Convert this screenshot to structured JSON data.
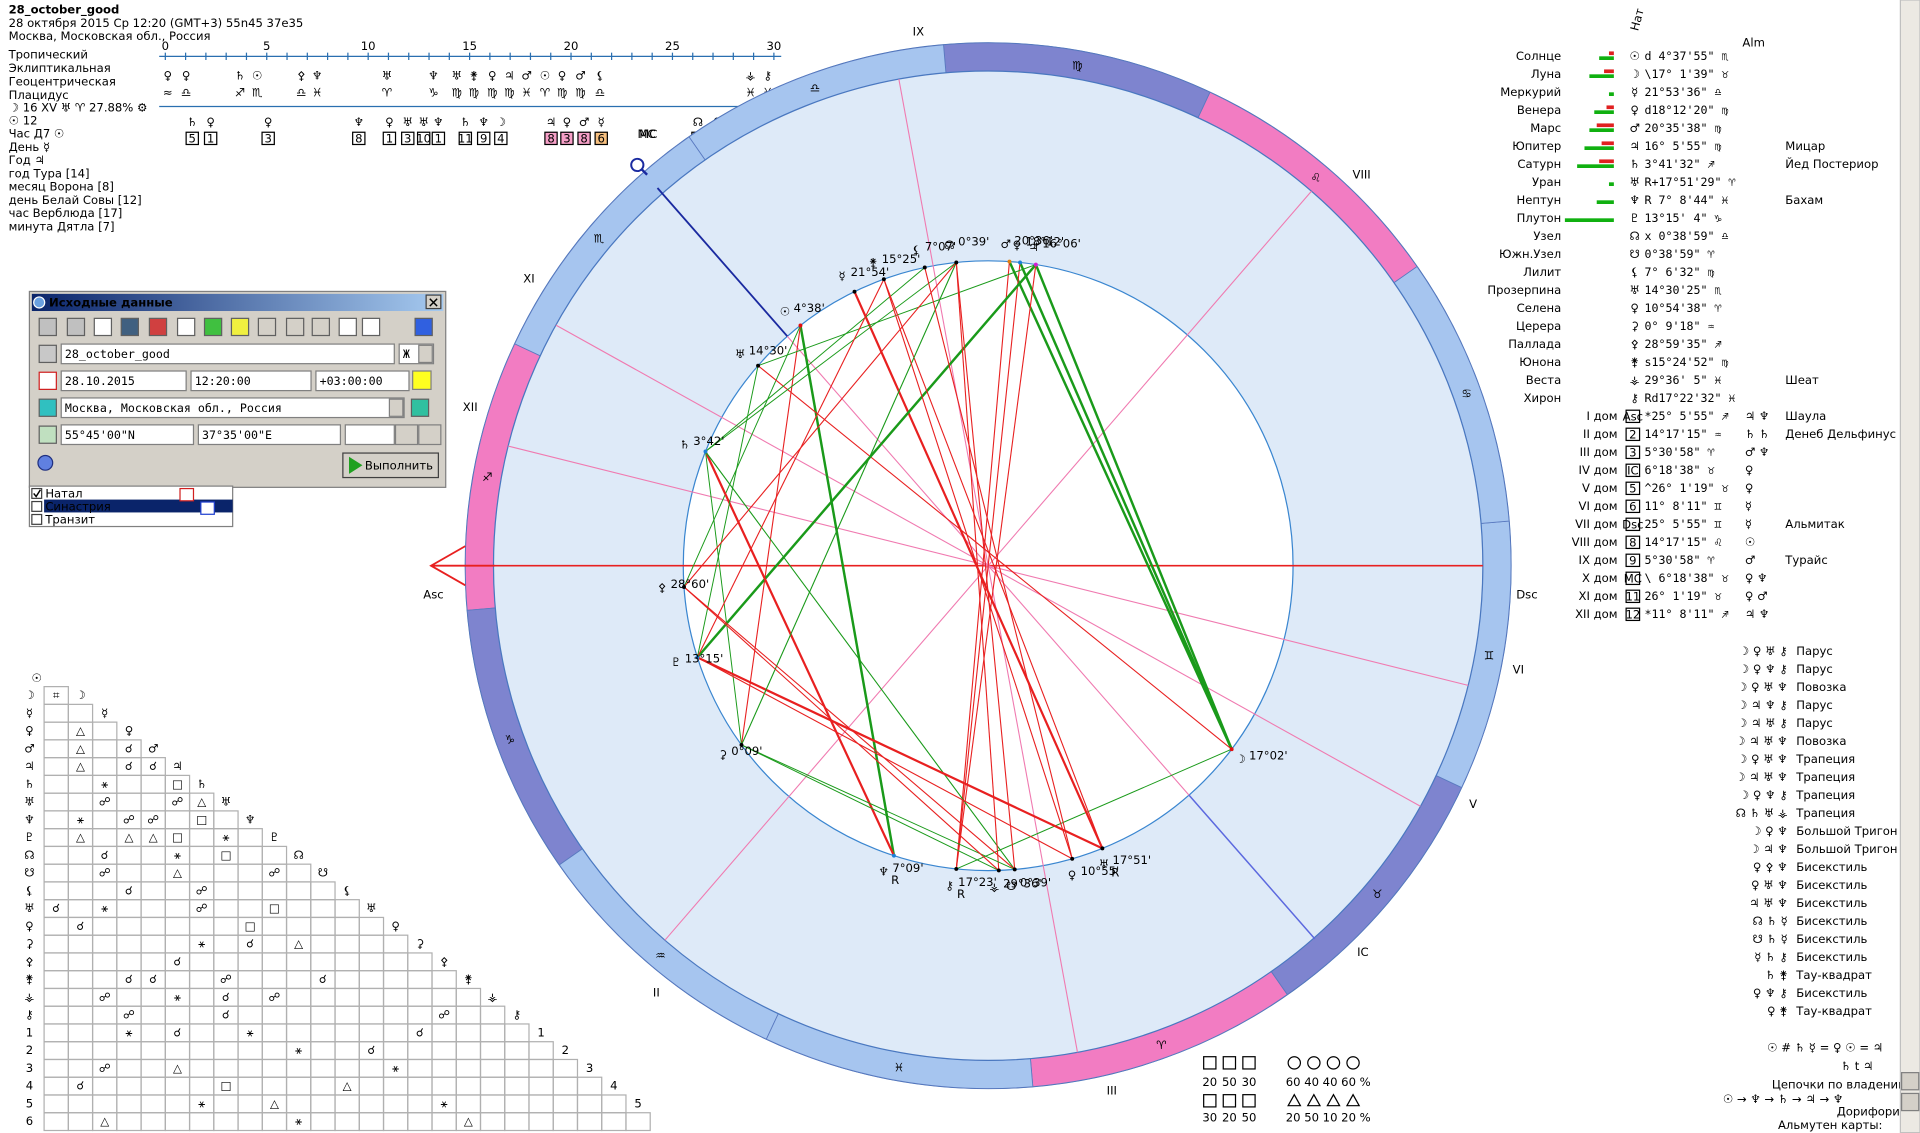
{
  "header": {
    "title": "28_october_good",
    "date_line": "28 октября 2015  Ср  12:20 (GMT+3) 55n45  37e35",
    "place": "Москва, Московская обл., Россия"
  },
  "settings": [
    "Тропический",
    "Эклиптикальная",
    "Геоцентрическая",
    "Плацидус"
  ],
  "info": [
    "☽  16 XV  ♅ ♈ 27.88%  ⚙",
    "☉  12",
    "Час Д7  ☉",
    "День  ☿",
    "Год  ♃",
    "год Тура [14]",
    "месяц Ворона [8]",
    "день Белай Совы [12]",
    "час Верблюда [17]",
    "минута Дятла [7]"
  ],
  "timeline": {
    "ticks": [
      "0",
      "5",
      "10",
      "15",
      "20",
      "25",
      "30"
    ],
    "upper": [
      [
        "♀",
        "≈"
      ],
      [
        "♀",
        "♎"
      ],
      [
        "♄",
        "♐"
      ],
      [
        "☉",
        "♏"
      ],
      [
        "⚴",
        "♎"
      ],
      [
        "♆",
        "♓"
      ],
      [
        "♅",
        "♈"
      ],
      [
        "♆",
        "♑"
      ],
      [
        "♅",
        "♍"
      ],
      [
        "⚵",
        "♍"
      ],
      [
        "♀",
        "♍"
      ],
      [
        "♃",
        "♍"
      ],
      [
        "♂",
        "♓"
      ],
      [
        "☉",
        "♈"
      ],
      [
        "♀",
        "♍"
      ],
      [
        "♂",
        "♍"
      ],
      [
        "⚸",
        "♎"
      ],
      [
        "⚶",
        "♓"
      ],
      [
        "⚷",
        "♓"
      ]
    ],
    "lower": [
      [
        "♄",
        "5"
      ],
      [
        "♀",
        "1"
      ],
      [
        "♀",
        "3"
      ],
      [
        "♆",
        "8"
      ],
      [
        "♀",
        "1"
      ],
      [
        "♅",
        "3"
      ],
      [
        "♅",
        "10"
      ],
      [
        "♆",
        "1"
      ],
      [
        "♄",
        "11"
      ],
      [
        "♆",
        "9"
      ],
      [
        "☽",
        "4"
      ],
      [
        "♃",
        "8"
      ],
      [
        "♀",
        "3"
      ],
      [
        "♂",
        "8"
      ],
      [
        "☿",
        "6"
      ],
      [
        "☊",
        "2"
      ],
      [
        "⚸",
        "8"
      ],
      [
        "☉",
        "3"
      ]
    ],
    "mc": "MC"
  },
  "dialog": {
    "title": "Исходные данные",
    "name": "28_october_good",
    "gender": "Ж",
    "date": "28.10.2015",
    "time": "12:20:00",
    "zone": "+03:00:00",
    "city": "Москва, Московская обл., Россия",
    "lat": "55°45'00\"N",
    "lon": "37°35'00\"E",
    "button": "Выполнить"
  },
  "modes": [
    "Натал",
    "Синастрия",
    "Транзит"
  ],
  "wheel": {
    "signs": [
      "♈",
      "♉",
      "♊",
      "♋",
      "♌",
      "♍",
      "♎",
      "♏",
      "♐",
      "♑",
      "♒",
      "♓"
    ],
    "houses": [
      "IX",
      "VIII",
      "Dsc",
      "VI",
      "V",
      "IC",
      "III",
      "II",
      "Asc",
      "XII",
      "XI",
      "MC"
    ],
    "planets": [
      {
        "glyph": "☉",
        "label": "4°38'"
      },
      {
        "glyph": "☽",
        "label": "17°02'"
      },
      {
        "glyph": "☿",
        "label": "21°54'"
      },
      {
        "glyph": "♀",
        "label": "18°12'"
      },
      {
        "glyph": "♂",
        "label": "20°36'"
      },
      {
        "glyph": "♃",
        "label": "16°06'"
      },
      {
        "glyph": "♄",
        "label": "3°42'"
      },
      {
        "glyph": "♅",
        "label": "17°51'",
        "retro": "R"
      },
      {
        "glyph": "♆",
        "label": "7°09'",
        "retro": "R"
      },
      {
        "glyph": "♇",
        "label": "13°15'"
      },
      {
        "glyph": "☊",
        "label": "0°39'"
      },
      {
        "glyph": "☋",
        "label": "0°39'"
      },
      {
        "glyph": "⚸",
        "label": "7°07'"
      },
      {
        "glyph": "♅",
        "label": "14°30'"
      },
      {
        "glyph": "♀",
        "label": "10°55'"
      },
      {
        "glyph": "⚳",
        "label": "0°09'"
      },
      {
        "glyph": "⚴",
        "label": "28°60'"
      },
      {
        "glyph": "⚵",
        "label": "15°25'"
      },
      {
        "glyph": "⚶",
        "label": "29°36'"
      },
      {
        "glyph": "⚷",
        "label": "17°23'",
        "retro": "R"
      }
    ]
  },
  "table": {
    "headers": [
      "Нат",
      "Alm"
    ],
    "planets": [
      {
        "name": "Солнце",
        "glyph": "☉",
        "pos": "d  4°37'55\" ♏"
      },
      {
        "name": "Луна",
        "glyph": "☽",
        "pos": "\\17° 1'39\" ♉"
      },
      {
        "name": "Меркурий",
        "glyph": "☿",
        "pos": " 21°53'36\" ♎"
      },
      {
        "name": "Венера",
        "glyph": "♀",
        "pos": "d18°12'20\" ♍"
      },
      {
        "name": "Марс",
        "glyph": "♂",
        "pos": " 20°35'38\" ♍"
      },
      {
        "name": "Юпитер",
        "glyph": "♃",
        "pos": " 16° 5'55\" ♍",
        "star": "Мицар"
      },
      {
        "name": "Сатурн",
        "glyph": "♄",
        "pos": "  3°41'32\" ♐",
        "star": "Йед Постериор"
      },
      {
        "name": "Уран",
        "glyph": "♅",
        "pos": "R+17°51'29\" ♈"
      },
      {
        "name": "Нептун",
        "glyph": "♆",
        "pos": "R 7° 8'44\" ♓",
        "star": "Бахам"
      },
      {
        "name": "Плутон",
        "glyph": "♇",
        "pos": " 13°15' 4\" ♑"
      },
      {
        "name": "Узел",
        "glyph": "☊",
        "pos": "x 0°38'59\" ♎"
      },
      {
        "name": "Южн.Узел",
        "glyph": "☋",
        "pos": "  0°38'59\" ♈"
      },
      {
        "name": "Лилит",
        "glyph": "⚸",
        "pos": "  7° 6'32\" ♍"
      },
      {
        "name": "Прозерпина",
        "glyph": "♅",
        "pos": " 14°30'25\" ♏"
      },
      {
        "name": "Селена",
        "glyph": "♀",
        "pos": " 10°54'38\" ♈"
      },
      {
        "name": "Церера",
        "glyph": "⚳",
        "pos": "  0° 9'18\" ♒"
      },
      {
        "name": "Паллада",
        "glyph": "⚴",
        "pos": " 28°59'35\" ♐"
      },
      {
        "name": "Юнона",
        "glyph": "⚵",
        "pos": "s15°24'52\" ♍"
      },
      {
        "name": "Веста",
        "glyph": "⚶",
        "pos": " 29°36' 5\" ♓",
        "star": "Шеат"
      },
      {
        "name": "Хирон",
        "glyph": "⚷",
        "pos": "Rd17°22'32\" ♓"
      }
    ],
    "houses": [
      {
        "name": "I дом",
        "box": "Asc",
        "pos": "*25° 5'55\" ♐",
        "rulers": "♃  ♆",
        "star": "Шаула"
      },
      {
        "name": "II дом",
        "box": "2",
        "pos": " 14°17'15\" ♒",
        "rulers": "♄  ♄",
        "star": "Денеб Дельфинус"
      },
      {
        "name": "III дом",
        "box": "3",
        "pos": "  5°30'58\" ♈",
        "rulers": "♂  ♆"
      },
      {
        "name": "IV дом",
        "box": "IC",
        "pos": "  6°18'38\" ♉",
        "rulers": "♀"
      },
      {
        "name": "V дом",
        "box": "5",
        "pos": "^26° 1'19\" ♉",
        "rulers": "♀"
      },
      {
        "name": "VI дом",
        "box": "6",
        "pos": " 11° 8'11\" ♊",
        "rulers": "☿"
      },
      {
        "name": "VII дом",
        "box": "Dsc",
        "pos": " 25° 5'55\" ♊",
        "rulers": "☿",
        "star": "Альмитак"
      },
      {
        "name": "VIII дом",
        "box": "8",
        "pos": " 14°17'15\" ♌",
        "rulers": "☉"
      },
      {
        "name": "IX дом",
        "box": "9",
        "pos": "  5°30'58\" ♈",
        "rulers": "♂",
        "star": "Турайс"
      },
      {
        "name": "X дом",
        "box": "MC",
        "pos": "\\ 6°18'38\" ♉",
        "rulers": "♀  ♆"
      },
      {
        "name": "XI дом",
        "box": "11",
        "pos": " 26° 1'19\" ♉",
        "rulers": "♀  ♂"
      },
      {
        "name": "XII дом",
        "box": "12",
        "pos": "*11° 8'11\" ♐",
        "rulers": "♃  ♆"
      }
    ]
  },
  "configurations": [
    {
      "glyphs": "☽ ♀ ♅ ⚷",
      "name": "Парус"
    },
    {
      "glyphs": "☽ ♀ ♆ ⚷",
      "name": "Парус"
    },
    {
      "glyphs": "☽ ♀ ♅ ♆",
      "name": "Повозка"
    },
    {
      "glyphs": "☽ ♃ ♆ ⚷",
      "name": "Парус"
    },
    {
      "glyphs": "☽ ♃ ♅ ⚷",
      "name": "Парус"
    },
    {
      "glyphs": "☽ ♃ ♅ ♆",
      "name": "Повозка"
    },
    {
      "glyphs": "☽ ♀ ♅ ♆",
      "name": "Трапеция"
    },
    {
      "glyphs": "☽ ♃ ♅ ♆",
      "name": "Трапеция"
    },
    {
      "glyphs": "☽ ♀ ♆ ⚷",
      "name": "Трапеция"
    },
    {
      "glyphs": "☊ ♄ ♅ ⚶",
      "name": "Трапеция"
    },
    {
      "glyphs": "☽ ♀ ♆",
      "name": "Большой Тригон"
    },
    {
      "glyphs": "☽ ♃ ♆",
      "name": "Большой Тригон"
    },
    {
      "glyphs": "♀ ⚴ ♆",
      "name": "Бисекстиль"
    },
    {
      "glyphs": "♀ ♅ ♆",
      "name": "Бисекстиль"
    },
    {
      "glyphs": "♃ ♅ ♆",
      "name": "Бисекстиль"
    },
    {
      "glyphs": "☊ ♄ ☿",
      "name": "Бисекстиль"
    },
    {
      "glyphs": "☋ ♄ ☿",
      "name": "Бисекстиль"
    },
    {
      "glyphs": "☿ ♄ ⚷",
      "name": "Бисекстиль"
    },
    {
      "glyphs": "♄ ⚵",
      "name": "Тау-квадрат"
    },
    {
      "glyphs": "♀ ♆ ⚷",
      "name": "Бисекстиль"
    },
    {
      "glyphs": "♀ ⚵",
      "name": "Тау-квадрат"
    }
  ],
  "aspect_grid": {
    "header": "☉",
    "rows": [
      {
        "label": "☽",
        "cells": [
          "⌗"
        ]
      },
      {
        "label": "☿",
        "cells": [
          null,
          null
        ]
      },
      {
        "label": "♀",
        "cells": [
          null,
          "△",
          null
        ]
      },
      {
        "label": "♂",
        "cells": [
          null,
          "△",
          null,
          "☌"
        ]
      },
      {
        "label": "♃",
        "cells": [
          null,
          "△",
          null,
          "☌",
          "☌"
        ]
      },
      {
        "label": "♄",
        "cells": [
          null,
          null,
          "⚹",
          null,
          null,
          "□"
        ]
      },
      {
        "label": "♅",
        "cells": [
          null,
          null,
          "☍",
          null,
          null,
          "☍",
          "△"
        ]
      },
      {
        "label": "♆",
        "cells": [
          null,
          "⚹",
          null,
          "☍",
          "☍",
          null,
          "□"
        ]
      },
      {
        "label": "♇",
        "cells": [
          null,
          "△",
          null,
          "△",
          "△",
          "□",
          null,
          "⚹"
        ]
      },
      {
        "label": "☊",
        "cells": [
          null,
          null,
          "☌",
          null,
          null,
          "⚹",
          null,
          "□",
          null
        ]
      },
      {
        "label": "☋",
        "cells": [
          null,
          null,
          "☍",
          null,
          null,
          "△",
          null,
          null,
          null,
          "☍"
        ]
      },
      {
        "label": "⚸",
        "cells": [
          null,
          null,
          null,
          "☌",
          null,
          null,
          "☍",
          null,
          null,
          null,
          null
        ]
      },
      {
        "label": "♅",
        "cells": [
          "☌",
          null,
          "⚹",
          null,
          null,
          null,
          "☍",
          null,
          null,
          "□",
          null,
          null
        ]
      },
      {
        "label": "♀",
        "cells": [
          null,
          "☌",
          null,
          null,
          null,
          null,
          null,
          null,
          "□",
          null,
          null,
          null,
          null
        ]
      },
      {
        "label": "⚳",
        "cells": [
          null,
          null,
          null,
          null,
          null,
          null,
          "⚹",
          null,
          "☌",
          null,
          "△",
          null,
          null,
          null
        ]
      },
      {
        "label": "⚴",
        "cells": [
          null,
          null,
          null,
          null,
          null,
          "☌",
          null,
          null,
          null,
          null,
          null,
          null,
          null,
          null,
          null
        ]
      },
      {
        "label": "⚵",
        "cells": [
          null,
          null,
          null,
          "☌",
          "☌",
          null,
          null,
          "☍",
          null,
          null,
          null,
          "☌",
          null,
          null,
          null,
          null
        ]
      },
      {
        "label": "⚶",
        "cells": [
          null,
          null,
          "☍",
          null,
          null,
          "⚹",
          null,
          "☌",
          null,
          "☍",
          null,
          null,
          null,
          null,
          null,
          null,
          null
        ]
      },
      {
        "label": "⚷",
        "cells": [
          null,
          null,
          null,
          "☍",
          null,
          null,
          null,
          "☌",
          null,
          null,
          null,
          null,
          null,
          null,
          null,
          null,
          "☍"
        ]
      },
      {
        "label": "1",
        "cells": [
          null,
          null,
          null,
          "⚹",
          null,
          "☌",
          null,
          null,
          "⚹",
          null,
          null,
          null,
          null,
          null,
          null,
          "☌"
        ]
      },
      {
        "label": "2",
        "cells": [
          null,
          null,
          null,
          null,
          null,
          null,
          null,
          null,
          null,
          null,
          "⚹",
          null,
          null,
          "☌"
        ]
      },
      {
        "label": "3",
        "cells": [
          null,
          null,
          "☍",
          null,
          null,
          "△",
          null,
          null,
          null,
          null,
          null,
          null,
          null,
          null,
          "⚹"
        ]
      },
      {
        "label": "4",
        "cells": [
          null,
          "☌",
          null,
          null,
          null,
          null,
          null,
          "□",
          null,
          null,
          null,
          null,
          "△"
        ]
      },
      {
        "label": "5",
        "cells": [
          null,
          null,
          null,
          null,
          null,
          null,
          "⚹",
          null,
          null,
          "△",
          null,
          null,
          null,
          null,
          null,
          null,
          "⚹"
        ]
      },
      {
        "label": "6",
        "cells": [
          null,
          null,
          "△",
          null,
          null,
          null,
          null,
          null,
          null,
          null,
          "⚹",
          null,
          null,
          null,
          null,
          null,
          null,
          "△"
        ]
      }
    ]
  },
  "temperament": {
    "top": [
      "20",
      "50",
      "30"
    ],
    "top_pct": "60  40  40  60 %",
    "bottom": [
      "30",
      "20",
      "50"
    ],
    "bottom_pct": "20  50  10  20 %"
  },
  "footer": {
    "rulers": "☉ # ♄ ☿ = ♀ ☉ = ♃",
    "rulers2": "♄ t ♃",
    "chains": "Цепочки по владению:",
    "chain_row": "☉ → ♆ → ♄ → ♃ → ♆",
    "doryphory": "Дорифорий:",
    "almuten": "Альмутен карты:"
  }
}
